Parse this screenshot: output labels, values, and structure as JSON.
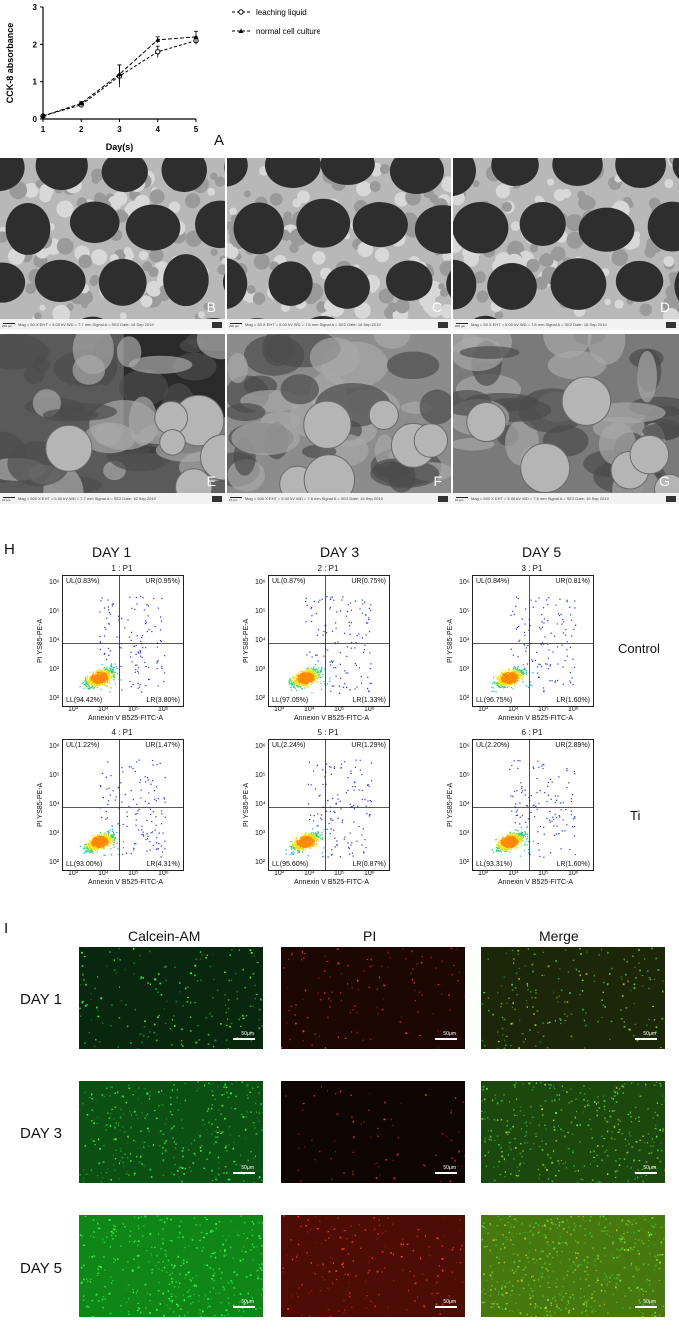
{
  "chart_data": {
    "type": "line",
    "x": [
      1,
      2,
      3,
      4,
      5
    ],
    "xlabel": "Day(s)",
    "ylabel": "CCK-8 absorbance",
    "xlim": [
      1,
      5
    ],
    "ylim": [
      0,
      3
    ],
    "xticks": [
      "1",
      "2",
      "3",
      "4",
      "5"
    ],
    "yticks": [
      "0",
      "1",
      "2",
      "3"
    ],
    "legend_position": "top-right",
    "series": [
      {
        "name": "leaching liquid",
        "marker": "circle",
        "values": [
          0.08,
          0.38,
          1.15,
          1.8,
          2.1
        ],
        "errors": [
          0.03,
          0.06,
          0.3,
          0.15,
          0.1
        ]
      },
      {
        "name": "normal cell culture",
        "marker": "triangle",
        "values": [
          0.08,
          0.42,
          1.2,
          2.12,
          2.2
        ],
        "errors": [
          0.03,
          0.05,
          0.25,
          0.08,
          0.15
        ]
      }
    ]
  },
  "panel_label_a": "A",
  "sem": {
    "top_row": [
      {
        "label": "B",
        "info": "Mag = 50 X    EHT = 5.00 kV    WD = 7.7 mm    Signal A = SE2    Date: 16 Sep 2019",
        "scale": "200 µm"
      },
      {
        "label": "C",
        "info": "Mag = 50 X    EHT = 5.00 kV    WD = 7.6 mm    Signal A = SE2    Date: 16 Sep 2019",
        "scale": "200 µm"
      },
      {
        "label": "D",
        "info": "Mag = 50 X    EHT = 5.00 kV    WD = 7.8 mm    Signal A = SE2    Date: 16 Sep 2019",
        "scale": "200 µm"
      }
    ],
    "bottom_row": [
      {
        "label": "E",
        "info": "Mag = 500 X    EHT = 5.00 kV    WD = 7.7 mm    Signal A = SE2    Date: 16 Sep 2019",
        "scale": "10 µm"
      },
      {
        "label": "F",
        "info": "Mag = 500 X    EHT = 5.00 kV    WD = 7.6 mm    Signal A = SE2    Date: 16 Sep 2019",
        "scale": "10 µm"
      },
      {
        "label": "G",
        "info": "Mag = 500 X    EHT = 5.00 kV    WD = 7.6 mm    Signal A = SE2    Date: 16 Sep 2019",
        "scale": "10 µm"
      }
    ]
  },
  "flow": {
    "panel_label": "H",
    "days": [
      "DAY 1",
      "DAY 3",
      "DAY 5"
    ],
    "groups": [
      "Control",
      "Ti"
    ],
    "ylabel": "PI YS85-PE-A",
    "xlabel": "Annexin V B525-FITC-A",
    "x_ticks": [
      "10³",
      "10⁴",
      "10⁵",
      "10⁶"
    ],
    "y_ticks": [
      "10²",
      "10³",
      "10⁴",
      "10⁵",
      "10⁶"
    ],
    "plots": [
      {
        "title": "1 : P1",
        "UL": "UL(0.83%)",
        "UR": "UR(0.95%)",
        "LL": "LL(94.42%)",
        "LR": "LR(3.80%)"
      },
      {
        "title": "2 : P1",
        "UL": "UL(0.87%)",
        "UR": "UR(0.75%)",
        "LL": "LL(97.05%)",
        "LR": "LR(1.33%)"
      },
      {
        "title": "3 : P1",
        "UL": "UL(0.84%)",
        "UR": "UR(0.81%)",
        "LL": "LL(96.75%)",
        "LR": "LR(1.60%)"
      },
      {
        "title": "4 : P1",
        "UL": "UL(1.22%)",
        "UR": "UR(1.47%)",
        "LL": "LL(93.00%)",
        "LR": "LR(4.31%)"
      },
      {
        "title": "5 : P1",
        "UL": "UL(2.24%)",
        "UR": "UR(1.29%)",
        "LL": "LL(95.60%)",
        "LR": "LR(0.87%)"
      },
      {
        "title": "6 : P1",
        "UL": "UL(2.20%)",
        "UR": "UR(2.89%)",
        "LL": "LL(93.31%)",
        "LR": "LR(1.60%)"
      }
    ]
  },
  "fluor": {
    "panel_label": "I",
    "columns": [
      "Calcein-AM",
      "PI",
      "Merge"
    ],
    "rows": [
      "DAY 1",
      "DAY 3",
      "DAY 5"
    ],
    "scale_label": "50μm"
  },
  "colors": {
    "sem_gray": "#8a8a8a",
    "flow_dot": "#2233dd",
    "calcein_green": "#22cc44",
    "pi_red": "#cc3322"
  }
}
